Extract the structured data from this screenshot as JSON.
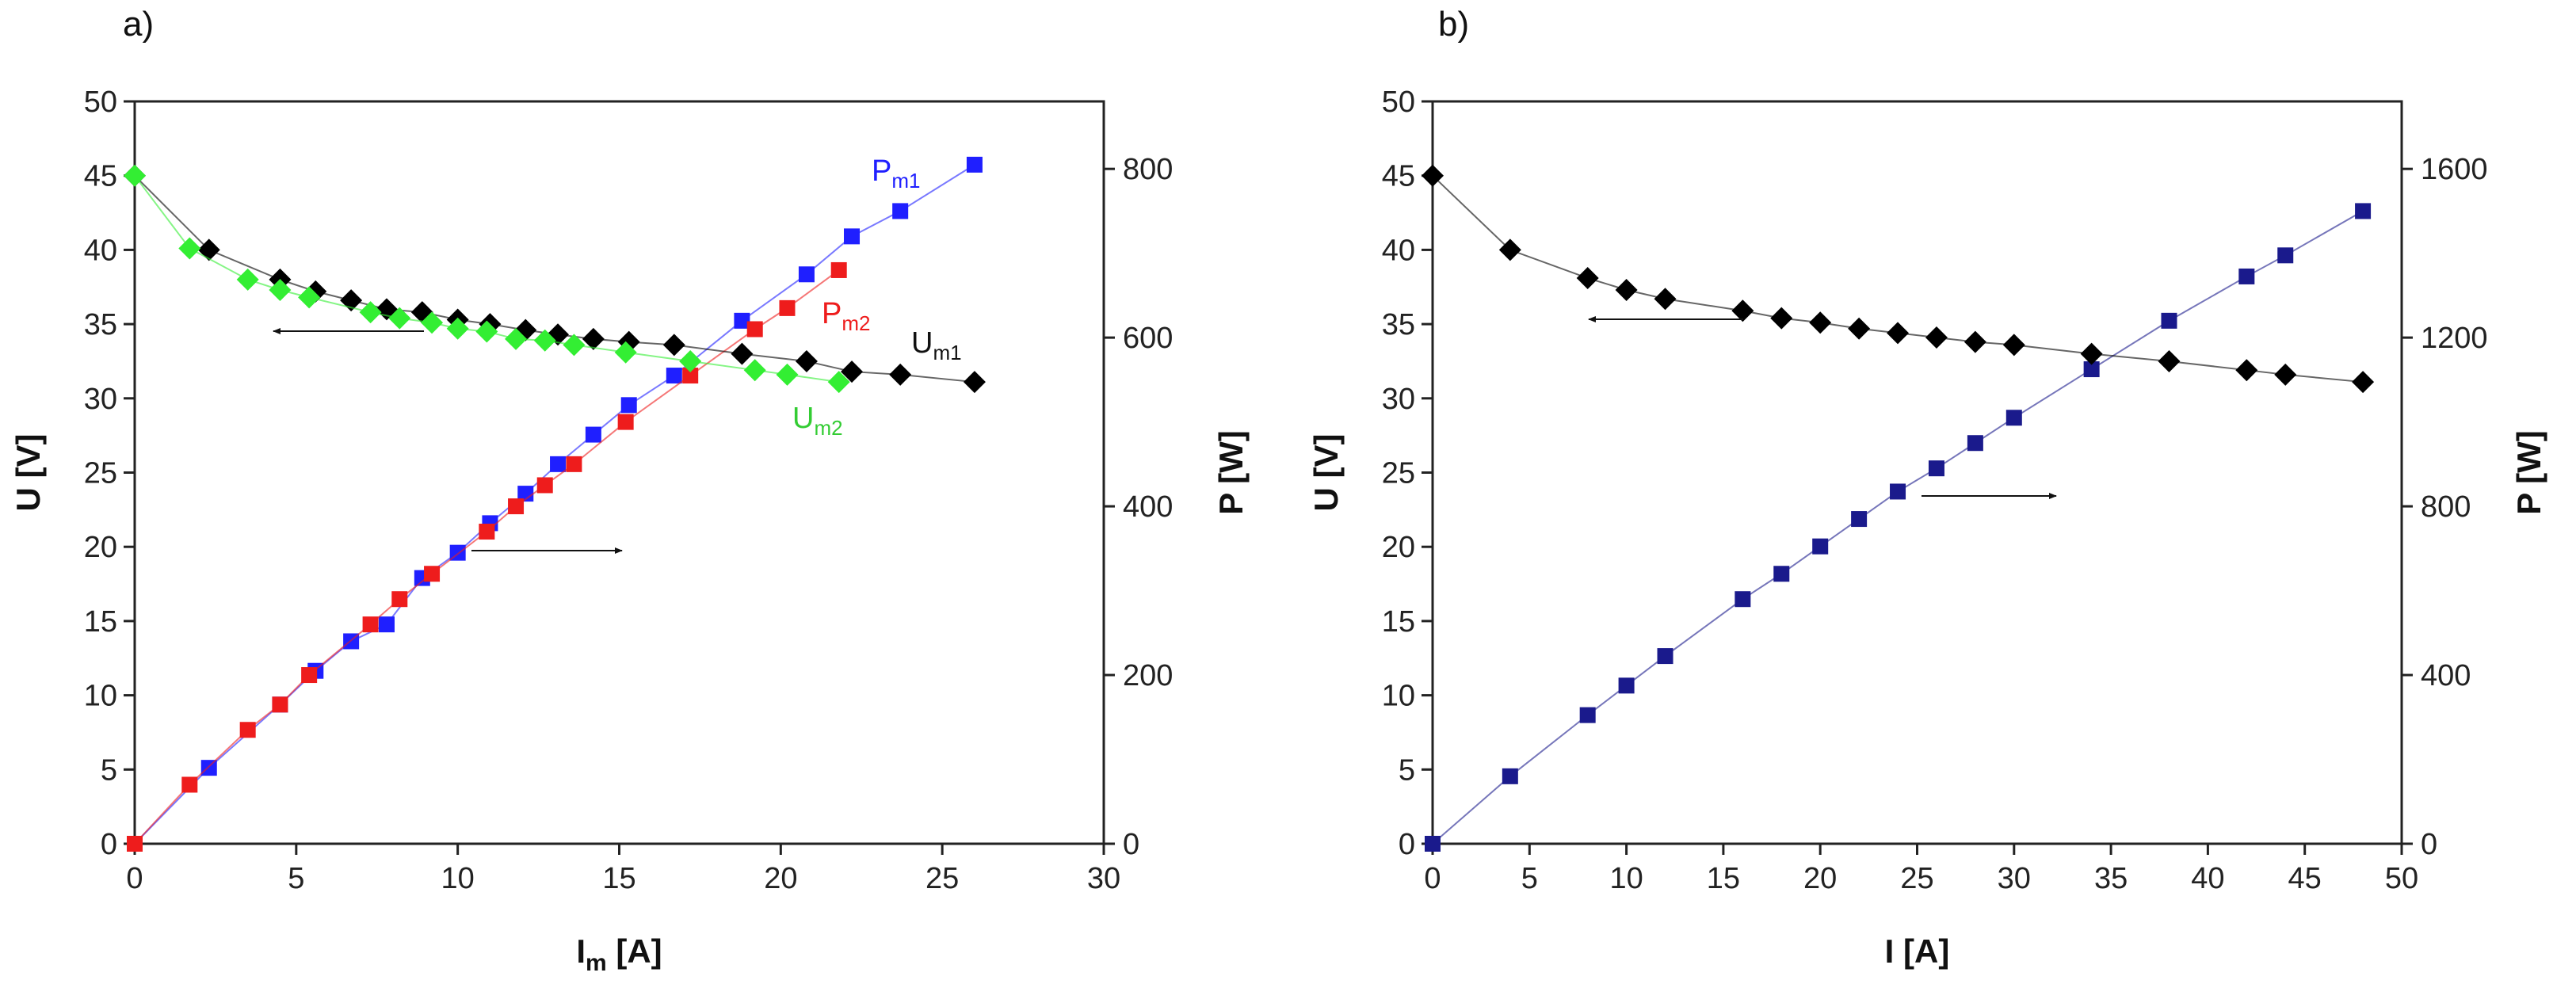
{
  "chart_data": [
    {
      "type": "line",
      "panel_label": "a)",
      "xlabel": "I",
      "xlabel_sub": "m",
      "xlabel_unit": " [A]",
      "ylabel_left": "U [V]",
      "ylabel_right": "P [W]",
      "xlim": [
        0,
        30
      ],
      "ylim_left": [
        0,
        50
      ],
      "ylim_right": [
        0,
        880
      ],
      "xticks": [
        0,
        5,
        10,
        15,
        20,
        25,
        30
      ],
      "yticks_left": [
        0,
        5,
        10,
        15,
        20,
        25,
        30,
        35,
        40,
        45,
        50
      ],
      "yticks_right": [
        0,
        200,
        400,
        600,
        800
      ],
      "series": [
        {
          "name": "Pm1",
          "label_main": "P",
          "label_sub": "m1",
          "axis": "right",
          "marker": "square",
          "color": "#1f1fff",
          "x": [
            0,
            2.3,
            4.5,
            5.6,
            6.7,
            7.8,
            8.9,
            10.0,
            11.0,
            12.1,
            13.1,
            14.2,
            15.3,
            16.7,
            18.8,
            20.8,
            22.2,
            23.7,
            26.0
          ],
          "y": [
            0,
            90,
            165,
            205,
            240,
            260,
            315,
            345,
            380,
            415,
            450,
            485,
            520,
            555,
            620,
            675,
            720,
            750,
            805
          ]
        },
        {
          "name": "Pm2",
          "label_main": "P",
          "label_sub": "m2",
          "axis": "right",
          "marker": "square",
          "color": "#ee1c1c",
          "x": [
            0,
            1.7,
            3.5,
            4.5,
            5.4,
            7.3,
            8.2,
            9.2,
            10.9,
            11.8,
            12.7,
            13.6,
            15.2,
            17.2,
            19.2,
            20.2,
            21.8
          ],
          "y": [
            0,
            70,
            135,
            165,
            200,
            260,
            290,
            320,
            370,
            400,
            425,
            450,
            500,
            555,
            610,
            635,
            680
          ]
        },
        {
          "name": "Um1",
          "label_main": "U",
          "label_sub": "m1",
          "axis": "left",
          "marker": "diamond",
          "color": "#000000",
          "x": [
            0,
            2.3,
            4.5,
            5.6,
            6.7,
            7.8,
            8.9,
            10.0,
            11.0,
            12.1,
            13.1,
            14.2,
            15.3,
            16.7,
            18.8,
            20.8,
            22.2,
            23.7,
            26.0
          ],
          "y": [
            45,
            40.0,
            38.0,
            37.2,
            36.6,
            36.0,
            35.8,
            35.3,
            35.0,
            34.6,
            34.3,
            34.0,
            33.8,
            33.6,
            33.0,
            32.5,
            31.8,
            31.6,
            31.1
          ]
        },
        {
          "name": "Um2",
          "label_main": "U",
          "label_sub": "m2",
          "axis": "left",
          "marker": "diamond",
          "color": "#33ee33",
          "x": [
            0,
            1.7,
            3.5,
            4.5,
            5.4,
            7.3,
            8.2,
            9.2,
            10.0,
            10.9,
            11.8,
            12.7,
            13.6,
            15.2,
            17.2,
            19.2,
            20.2,
            21.8
          ],
          "y": [
            45,
            40.1,
            38.0,
            37.3,
            36.8,
            35.8,
            35.4,
            35.1,
            34.7,
            34.5,
            34.0,
            33.9,
            33.6,
            33.1,
            32.5,
            31.9,
            31.6,
            31.1
          ]
        }
      ]
    },
    {
      "type": "line",
      "panel_label": "b)",
      "xlabel": "I",
      "xlabel_sub": "",
      "xlabel_unit": " [A]",
      "ylabel_left": "U [V]",
      "ylabel_right": "P [W]",
      "xlim": [
        0,
        50
      ],
      "ylim_left": [
        0,
        50
      ],
      "ylim_right": [
        0,
        1760
      ],
      "xticks": [
        0,
        5,
        10,
        15,
        20,
        25,
        30,
        35,
        40,
        45,
        50
      ],
      "yticks_left": [
        0,
        5,
        10,
        15,
        20,
        25,
        30,
        35,
        40,
        45,
        50
      ],
      "yticks_right": [
        0,
        400,
        800,
        1200,
        1600
      ],
      "series": [
        {
          "name": "P",
          "label_main": "",
          "label_sub": "",
          "axis": "right",
          "marker": "square",
          "color": "#1a1a8c",
          "x": [
            0,
            4,
            8,
            10,
            12,
            16,
            18,
            20,
            22,
            24,
            26,
            28,
            30,
            34,
            38,
            42,
            44,
            48
          ],
          "y": [
            0,
            160,
            305,
            375,
            445,
            580,
            640,
            705,
            770,
            835,
            890,
            950,
            1010,
            1125,
            1240,
            1345,
            1395,
            1500
          ]
        },
        {
          "name": "U",
          "label_main": "",
          "label_sub": "",
          "axis": "left",
          "marker": "diamond",
          "color": "#000000",
          "x": [
            0,
            4,
            8,
            10,
            12,
            16,
            18,
            20,
            22,
            24,
            26,
            28,
            30,
            34,
            38,
            42,
            44,
            48
          ],
          "y": [
            45,
            40.0,
            38.1,
            37.3,
            36.7,
            35.9,
            35.4,
            35.1,
            34.7,
            34.4,
            34.1,
            33.8,
            33.6,
            33.0,
            32.5,
            31.9,
            31.6,
            31.1
          ]
        }
      ]
    }
  ]
}
